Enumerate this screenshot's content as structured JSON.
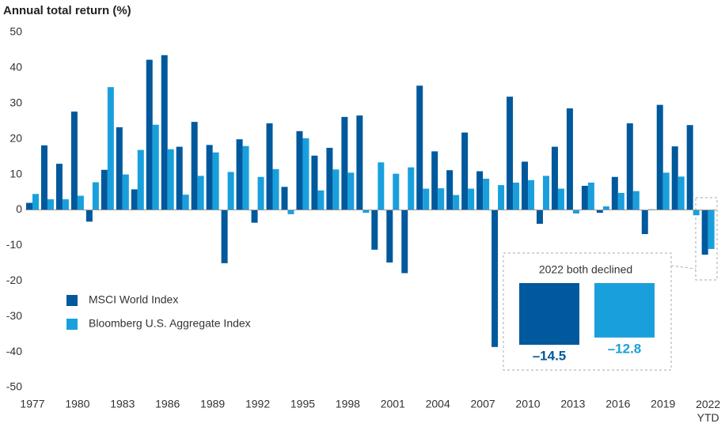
{
  "chart_data": {
    "type": "bar",
    "title": "Annual total return (%)",
    "categories": [
      "1977",
      null,
      null,
      "1980",
      null,
      null,
      "1983",
      null,
      null,
      "1986",
      null,
      null,
      "1989",
      null,
      null,
      "1992",
      null,
      null,
      "1995",
      null,
      null,
      "1998",
      null,
      null,
      "2001",
      null,
      null,
      "2004",
      null,
      null,
      "2007",
      null,
      null,
      "2010",
      null,
      null,
      "2013",
      null,
      null,
      "2016",
      null,
      null,
      "2019",
      null,
      null,
      "2022 YTD"
    ],
    "series": [
      {
        "name": "MSCI World Index",
        "color": "#00599c",
        "values": [
          2.0,
          18.2,
          13.0,
          27.7,
          -3.3,
          11.3,
          23.3,
          5.8,
          42.3,
          43.6,
          17.8,
          24.8,
          18.3,
          -15.0,
          19.9,
          -3.6,
          24.4,
          6.5,
          22.2,
          15.3,
          17.5,
          26.2,
          26.6,
          -11.2,
          -14.8,
          -17.8,
          35.0,
          16.5,
          11.2,
          21.8,
          10.9,
          -38.6,
          31.9,
          13.6,
          -3.9,
          17.8,
          28.6,
          6.8,
          -0.8,
          9.3,
          24.4,
          -6.8,
          29.6,
          17.9,
          23.9,
          -12.6
        ]
      },
      {
        "name": "Bloomberg U.S. Aggregate Index",
        "color": "#19a0dc",
        "values": [
          4.5,
          3.0,
          3.0,
          4.0,
          7.8,
          34.6,
          10.0,
          16.9,
          24.0,
          17.1,
          4.3,
          9.6,
          16.2,
          10.7,
          18.0,
          9.3,
          11.5,
          -1.2,
          20.2,
          5.5,
          11.4,
          10.5,
          -0.8,
          13.4,
          10.2,
          12.0,
          6.0,
          6.1,
          4.2,
          6.0,
          8.8,
          7.0,
          7.7,
          8.4,
          9.6,
          6.0,
          -1.0,
          7.7,
          1.0,
          4.8,
          5.3,
          0.2,
          10.5,
          9.4,
          -1.5,
          -11.0
        ]
      }
    ],
    "ylim": [
      -50,
      50
    ],
    "yticks": [
      -50,
      -40,
      -30,
      -20,
      -10,
      0,
      10,
      20,
      30,
      40,
      50
    ],
    "legend": "lower left",
    "inset": {
      "title": "2022 both declined",
      "values": [
        -14.5,
        -12.8
      ],
      "value_labels": [
        "–14.5",
        "–12.8"
      ]
    }
  }
}
